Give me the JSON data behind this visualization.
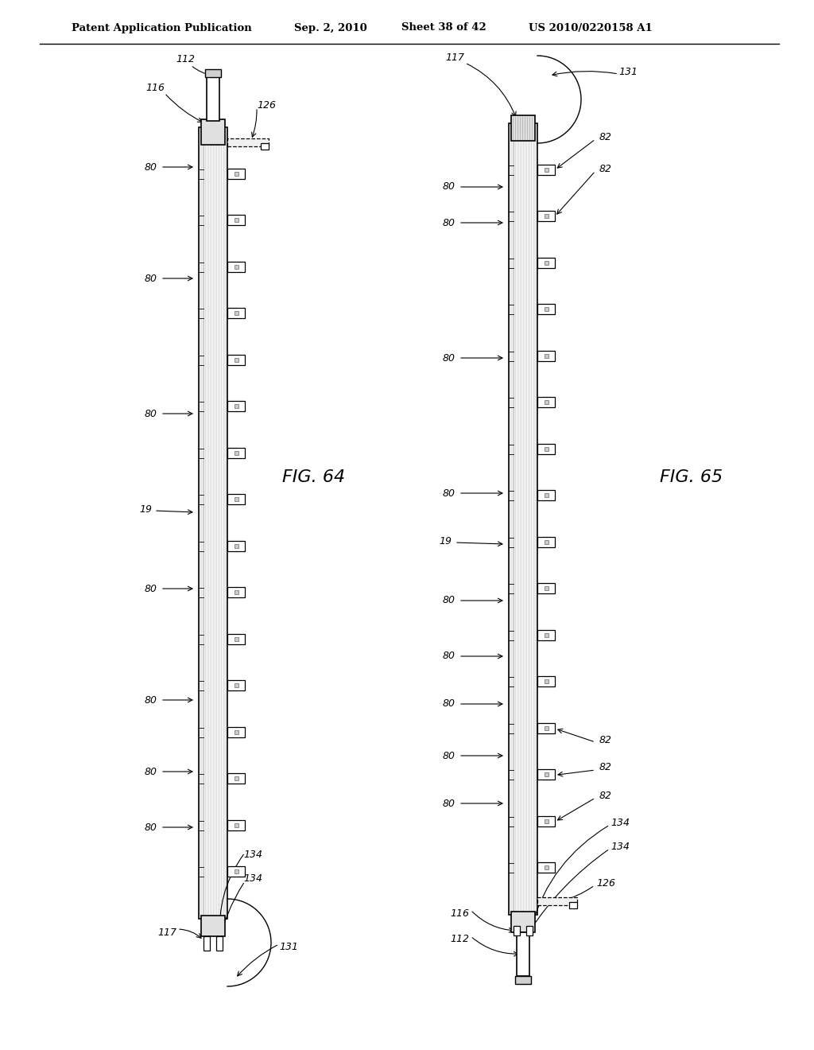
{
  "bg_color": "#ffffff",
  "line_color": "#000000",
  "header_text": "Patent Application Publication",
  "header_date": "Sep. 2, 2010",
  "header_sheet": "Sheet 38 of 42",
  "header_patent": "US 2010/0220158 A1",
  "fig64_label": "FIG. 64",
  "fig65_label": "FIG. 65"
}
